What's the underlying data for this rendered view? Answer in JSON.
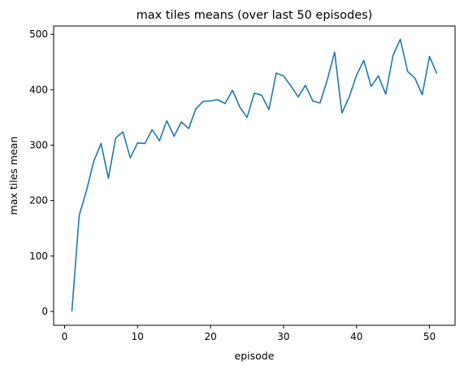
{
  "chart_data": {
    "type": "line",
    "title": "max tiles means (over last 50 episodes)",
    "xlabel": "episode",
    "ylabel": "max tiles mean",
    "xlim": [
      -1.5,
      53.5
    ],
    "ylim": [
      -25,
      515
    ],
    "xticks": [
      0,
      10,
      20,
      30,
      40,
      50
    ],
    "yticks": [
      0,
      100,
      200,
      300,
      400,
      500
    ],
    "grid": false,
    "line_color": "#1f77b4",
    "series": [
      {
        "x": [
          1,
          2,
          3,
          4,
          5,
          6,
          7,
          8,
          9,
          10,
          11,
          12,
          13,
          14,
          15,
          16,
          17,
          18,
          19,
          20,
          21,
          22,
          23,
          24,
          25,
          26,
          27,
          28,
          29,
          30,
          31,
          32,
          33,
          34,
          35,
          36,
          37,
          38,
          39,
          40,
          41,
          42,
          43,
          44,
          45,
          46,
          47,
          48,
          49,
          50,
          51
        ],
        "values": [
          0,
          173,
          218,
          271,
          303,
          240,
          313,
          324,
          277,
          304,
          303,
          328,
          308,
          344,
          316,
          342,
          330,
          366,
          379,
          380,
          382,
          375,
          399,
          369,
          350,
          394,
          390,
          364,
          430,
          425,
          407,
          387,
          408,
          380,
          376,
          418,
          468,
          358,
          387,
          426,
          453,
          406,
          425,
          392,
          462,
          491,
          433,
          421,
          391,
          460,
          429
        ]
      }
    ]
  }
}
